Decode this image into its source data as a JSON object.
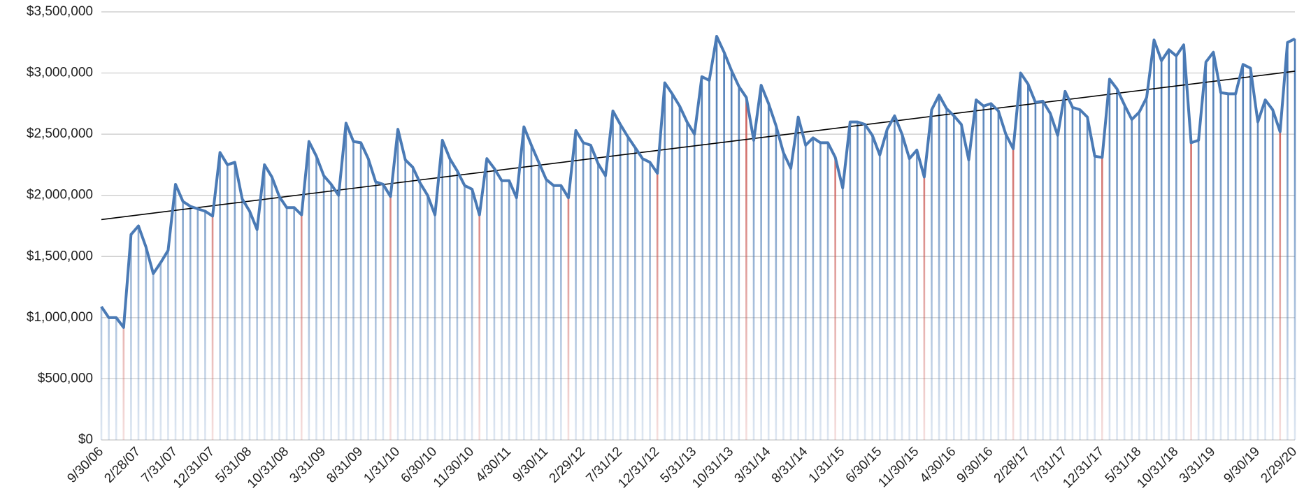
{
  "chart_data": {
    "type": "line",
    "categories": [
      "9/30/06",
      null,
      null,
      null,
      null,
      "2/28/07",
      null,
      null,
      null,
      null,
      "7/31/07",
      null,
      null,
      null,
      null,
      "12/31/07",
      null,
      null,
      null,
      null,
      "5/31/08",
      null,
      null,
      null,
      null,
      "10/31/08",
      null,
      null,
      null,
      null,
      "3/31/09",
      null,
      null,
      null,
      null,
      "8/31/09",
      null,
      null,
      null,
      null,
      "1/31/10",
      null,
      null,
      null,
      null,
      "6/30/10",
      null,
      null,
      null,
      null,
      "11/30/10",
      null,
      null,
      null,
      null,
      "4/30/11",
      null,
      null,
      null,
      null,
      "9/30/11",
      null,
      null,
      null,
      null,
      "2/29/12",
      null,
      null,
      null,
      null,
      "7/31/12",
      null,
      null,
      null,
      null,
      "12/31/12",
      null,
      null,
      null,
      null,
      "5/31/13",
      null,
      null,
      null,
      null,
      "10/31/13",
      null,
      null,
      null,
      null,
      "3/31/14",
      null,
      null,
      null,
      null,
      "8/31/14",
      null,
      null,
      null,
      null,
      "1/31/15",
      null,
      null,
      null,
      null,
      "6/30/15",
      null,
      null,
      null,
      null,
      "11/30/15",
      null,
      null,
      null,
      null,
      "4/30/16",
      null,
      null,
      null,
      null,
      "9/30/16",
      null,
      null,
      null,
      null,
      "2/28/17",
      null,
      null,
      null,
      null,
      "7/31/17",
      null,
      null,
      null,
      null,
      "12/31/17",
      null,
      null,
      null,
      null,
      "5/31/18",
      null,
      null,
      null,
      null,
      "10/31/18",
      null,
      null,
      null,
      null,
      "3/31/19",
      null,
      null,
      null,
      null,
      null,
      "9/30/19",
      null,
      null,
      null,
      null,
      "2/29/20"
    ],
    "values": [
      1090000,
      1000000,
      1000000,
      920000,
      1680000,
      1750000,
      1580000,
      1360000,
      1450000,
      1550000,
      2090000,
      1950000,
      1910000,
      1890000,
      1870000,
      1830000,
      2350000,
      2250000,
      2270000,
      1970000,
      1870000,
      1720000,
      2250000,
      2150000,
      1990000,
      1900000,
      1900000,
      1840000,
      2440000,
      2320000,
      2160000,
      2090000,
      2000000,
      2590000,
      2440000,
      2430000,
      2300000,
      2110000,
      2090000,
      1990000,
      2540000,
      2290000,
      2230000,
      2100000,
      2000000,
      1840000,
      2450000,
      2300000,
      2200000,
      2080000,
      2050000,
      1840000,
      2300000,
      2220000,
      2120000,
      2120000,
      1980000,
      2560000,
      2410000,
      2270000,
      2130000,
      2080000,
      2080000,
      1980000,
      2530000,
      2430000,
      2410000,
      2260000,
      2160000,
      2690000,
      2580000,
      2480000,
      2390000,
      2300000,
      2270000,
      2180000,
      2920000,
      2830000,
      2730000,
      2600000,
      2500000,
      2970000,
      2940000,
      3300000,
      3170000,
      3020000,
      2890000,
      2800000,
      2450000,
      2900000,
      2750000,
      2570000,
      2350000,
      2220000,
      2640000,
      2410000,
      2470000,
      2430000,
      2430000,
      2310000,
      2060000,
      2600000,
      2600000,
      2580000,
      2490000,
      2330000,
      2540000,
      2650000,
      2500000,
      2300000,
      2370000,
      2150000,
      2700000,
      2820000,
      2710000,
      2650000,
      2580000,
      2290000,
      2780000,
      2730000,
      2750000,
      2690000,
      2500000,
      2380000,
      3000000,
      2910000,
      2760000,
      2770000,
      2670000,
      2490000,
      2850000,
      2720000,
      2700000,
      2640000,
      2320000,
      2310000,
      2950000,
      2870000,
      2740000,
      2620000,
      2680000,
      2800000,
      3270000,
      3100000,
      3190000,
      3140000,
      3230000,
      2430000,
      2450000,
      3090000,
      3170000,
      2840000,
      2830000,
      2830000,
      3070000,
      3040000,
      2600000,
      2780000,
      2700000,
      2520000,
      3250000,
      3280000
    ],
    "color": "#4a7ab5",
    "drop_line_colors": [
      "#4a7ab5",
      "#4a7ab5",
      "#4a7ab5",
      "#c8504a",
      "#4a7ab5",
      "#4a7ab5",
      "#4a7ab5",
      "#4a7ab5",
      "#4a7ab5",
      "#4a7ab5",
      "#4a7ab5",
      "#4a7ab5",
      "#4a7ab5",
      "#4a7ab5",
      "#4a7ab5",
      "#c8504a",
      "#4a7ab5",
      "#4a7ab5",
      "#4a7ab5",
      "#4a7ab5",
      "#4a7ab5",
      "#4a7ab5",
      "#4a7ab5",
      "#4a7ab5",
      "#4a7ab5",
      "#4a7ab5",
      "#4a7ab5",
      "#c8504a",
      "#4a7ab5",
      "#4a7ab5",
      "#4a7ab5",
      "#4a7ab5",
      "#4a7ab5",
      "#4a7ab5",
      "#4a7ab5",
      "#4a7ab5",
      "#4a7ab5",
      "#4a7ab5",
      "#4a7ab5",
      "#c8504a",
      "#4a7ab5",
      "#4a7ab5",
      "#4a7ab5",
      "#4a7ab5",
      "#4a7ab5",
      "#4a7ab5",
      "#4a7ab5",
      "#4a7ab5",
      "#4a7ab5",
      "#4a7ab5",
      "#4a7ab5",
      "#c8504a",
      "#4a7ab5",
      "#4a7ab5",
      "#4a7ab5",
      "#4a7ab5",
      "#4a7ab5",
      "#4a7ab5",
      "#4a7ab5",
      "#4a7ab5",
      "#4a7ab5",
      "#4a7ab5",
      "#4a7ab5",
      "#c8504a",
      "#4a7ab5",
      "#4a7ab5",
      "#4a7ab5",
      "#4a7ab5",
      "#4a7ab5",
      "#4a7ab5",
      "#4a7ab5",
      "#4a7ab5",
      "#4a7ab5",
      "#4a7ab5",
      "#4a7ab5",
      "#c8504a",
      "#4a7ab5",
      "#4a7ab5",
      "#4a7ab5",
      "#4a7ab5",
      "#4a7ab5",
      "#4a7ab5",
      "#4a7ab5",
      "#4a7ab5",
      "#4a7ab5",
      "#4a7ab5",
      "#4a7ab5",
      "#c8504a",
      "#4a7ab5",
      "#4a7ab5",
      "#4a7ab5",
      "#4a7ab5",
      "#4a7ab5",
      "#4a7ab5",
      "#4a7ab5",
      "#4a7ab5",
      "#4a7ab5",
      "#4a7ab5",
      "#4a7ab5",
      "#c8504a",
      "#4a7ab5",
      "#4a7ab5",
      "#4a7ab5",
      "#4a7ab5",
      "#4a7ab5",
      "#4a7ab5",
      "#4a7ab5",
      "#4a7ab5",
      "#4a7ab5",
      "#4a7ab5",
      "#4a7ab5",
      "#c8504a",
      "#4a7ab5",
      "#4a7ab5",
      "#4a7ab5",
      "#4a7ab5",
      "#4a7ab5",
      "#4a7ab5",
      "#4a7ab5",
      "#4a7ab5",
      "#4a7ab5",
      "#4a7ab5",
      "#4a7ab5",
      "#c8504a",
      "#4a7ab5",
      "#4a7ab5",
      "#4a7ab5",
      "#4a7ab5",
      "#4a7ab5",
      "#4a7ab5",
      "#4a7ab5",
      "#4a7ab5",
      "#4a7ab5",
      "#4a7ab5",
      "#4a7ab5",
      "#c8504a",
      "#4a7ab5",
      "#4a7ab5",
      "#4a7ab5",
      "#4a7ab5",
      "#4a7ab5",
      "#4a7ab5",
      "#4a7ab5",
      "#4a7ab5",
      "#4a7ab5",
      "#4a7ab5",
      "#4a7ab5",
      "#c8504a",
      "#4a7ab5",
      "#4a7ab5",
      "#4a7ab5",
      "#4a7ab5",
      "#4a7ab5",
      "#4a7ab5",
      "#4a7ab5",
      "#4a7ab5",
      "#4a7ab5",
      "#4a7ab5",
      "#4a7ab5",
      "#c8504a",
      "#4a7ab5",
      "#4a7ab5"
    ],
    "trendline": true,
    "trendline_color": "#000000",
    "ylim": [
      0,
      3500000
    ],
    "yticks": [
      {
        "value": 0,
        "label": "$0"
      },
      {
        "value": 500000,
        "label": "$500,000"
      },
      {
        "value": 1000000,
        "label": "$1,000,000"
      },
      {
        "value": 1500000,
        "label": "$1,500,000"
      },
      {
        "value": 2000000,
        "label": "$2,000,000"
      },
      {
        "value": 2500000,
        "label": "$2,500,000"
      },
      {
        "value": 3000000,
        "label": "$3,000,000"
      },
      {
        "value": 3500000,
        "label": "$3,500,000"
      }
    ],
    "grid": true
  }
}
